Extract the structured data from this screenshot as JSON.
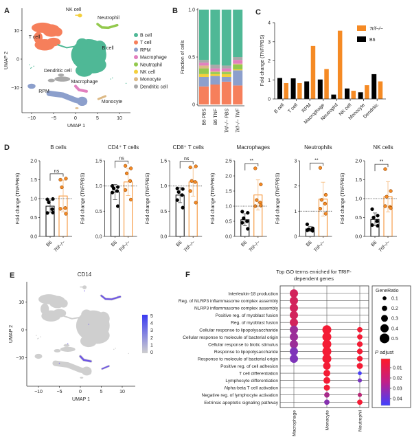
{
  "panel_labels": {
    "A": "A",
    "B": "B",
    "C": "C",
    "D": "D",
    "E": "E",
    "F": "F"
  },
  "umap_a": {
    "xlabel": "UMAP 1",
    "ylabel": "UMAP 2",
    "xticks": [
      "−10",
      "−5",
      "0",
      "5",
      "10"
    ],
    "yticks": [
      "10",
      "0",
      "−10"
    ],
    "cluster_labels": [
      "NK cell",
      "Neutrophil",
      "T cell",
      "B cell",
      "Dendritic cell",
      "Macrophage",
      "RPM",
      "Monocyte"
    ],
    "legend": [
      {
        "name": "B cell",
        "color": "#4fb896"
      },
      {
        "name": "T cell",
        "color": "#f67f5b"
      },
      {
        "name": "RPM",
        "color": "#8c9fcc"
      },
      {
        "name": "Macrophage",
        "color": "#e27fbf"
      },
      {
        "name": "Neutrophil",
        "color": "#93c94d"
      },
      {
        "name": "NK cell",
        "color": "#f4cf3b"
      },
      {
        "name": "Monocyte",
        "color": "#ddb985"
      },
      {
        "name": "Dendritic cell",
        "color": "#a9a9a9"
      }
    ]
  },
  "umap_e": {
    "title": "CD14",
    "xlabel": "UMAP 1",
    "ylabel": "UMAP 2",
    "xticks": [
      "−10",
      "−5",
      "0",
      "5",
      "10"
    ],
    "yticks": [
      "10",
      "0",
      "−10"
    ],
    "colorbar_ticks": [
      "5",
      "4",
      "3",
      "2",
      "1",
      "0"
    ],
    "colorbar_colors": {
      "high": "#3a3af2",
      "low": "#cfcfcf"
    },
    "base_color": "#cfcfcf",
    "high_expression_clusters": [
      "Neutrophil",
      "Macrophage",
      "Monocyte"
    ]
  },
  "chart_data": [
    {
      "panel": "B",
      "type": "bar",
      "stacked": true,
      "categories": [
        "B6 PBS",
        "B6 TNF",
        "Trif−/− PBS",
        "Trif−/− TNF"
      ],
      "ylabel": "Fraction of cells",
      "ylim": [
        0,
        1
      ],
      "yticks": [
        "0",
        "0.5",
        "1.0"
      ],
      "series": [
        {
          "name": "T cell",
          "values": [
            0.19,
            0.21,
            0.24,
            0.2
          ]
        },
        {
          "name": "RPM",
          "values": [
            0.1,
            0.09,
            0.05,
            0.16
          ]
        },
        {
          "name": "NK cell",
          "values": [
            0.03,
            0.02,
            0.03,
            0.01
          ]
        },
        {
          "name": "Neutrophil",
          "values": [
            0.06,
            0.02,
            0.02,
            0.05
          ]
        },
        {
          "name": "Monocyte",
          "values": [
            0.03,
            0.01,
            0.01,
            0.01
          ]
        },
        {
          "name": "Macrophage",
          "values": [
            0.03,
            0.03,
            0.03,
            0.04
          ]
        },
        {
          "name": "Dendritic cell",
          "values": [
            0.03,
            0.04,
            0.03,
            0.03
          ]
        },
        {
          "name": "B cell",
          "values": [
            0.53,
            0.58,
            0.59,
            0.5
          ]
        }
      ]
    },
    {
      "panel": "C",
      "type": "bar",
      "categories": [
        "B cell",
        "T cell",
        "RPM",
        "Macrophage",
        "Neutrophil",
        "NK cell",
        "Monocyte",
        "Dendritic"
      ],
      "ylabel": "Fold change (TNF/PBS)",
      "ylim": [
        0,
        4
      ],
      "yticks": [
        "0",
        "1",
        "2",
        "3",
        "4"
      ],
      "legend_position": "top-right",
      "series": [
        {
          "name": "B6",
          "color": "#000000",
          "values": [
            1.1,
            1.08,
            0.92,
            1.02,
            0.23,
            0.55,
            0.35,
            1.3
          ]
        },
        {
          "name": "Trif−/−",
          "color": "#f58a24",
          "values": [
            0.83,
            0.83,
            2.78,
            1.57,
            3.58,
            0.43,
            0.72,
            0.92
          ]
        }
      ],
      "legend": [
        "Trif−/−",
        "B6"
      ]
    },
    {
      "panel": "D",
      "type": "bar",
      "groups": [
        "B6",
        "Trif−/−"
      ],
      "ylabel": "Fold change (TNF/PBS)",
      "reference_line": 1.0,
      "colors": {
        "B6": "#000000",
        "Trif−/−": "#f58a24"
      },
      "subplots": [
        {
          "title": "B cells",
          "ylim": [
            0,
            2
          ],
          "yticks": [
            "0.0",
            "0.5",
            "1.0",
            "1.5",
            "2.0"
          ],
          "sig": "ns",
          "B6": {
            "mean": 0.8,
            "sd": 0.16,
            "points": [
              0.98,
              0.99,
              0.9,
              0.72,
              0.62,
              0.63
            ]
          },
          "Trif": {
            "mean": 1.07,
            "sd": 0.42,
            "points": [
              1.5,
              1.53,
              1.3,
              0.75,
              0.73,
              0.6
            ]
          }
        },
        {
          "title": "CD4⁺ T cells",
          "ylim": [
            0,
            1.5
          ],
          "yticks": [
            "0.0",
            "0.5",
            "1.0",
            "1.5"
          ],
          "sig": "ns",
          "B6": {
            "mean": 0.88,
            "sd": 0.15,
            "points": [
              1.0,
              0.98,
              0.95,
              0.9,
              0.87,
              0.6
            ]
          },
          "Trif": {
            "mean": 1.08,
            "sd": 0.27,
            "points": [
              1.4,
              1.35,
              1.25,
              1.1,
              0.92,
              0.73
            ]
          }
        },
        {
          "title": "CD8⁺ T cells",
          "ylim": [
            0,
            1.5
          ],
          "yticks": [
            "0.0",
            "0.5",
            "1.0",
            "1.5"
          ],
          "sig": "ns",
          "B6": {
            "mean": 0.82,
            "sd": 0.15,
            "points": [
              0.95,
              0.94,
              0.88,
              0.82,
              0.72,
              0.57
            ]
          },
          "Trif": {
            "mean": 1.08,
            "sd": 0.28,
            "points": [
              1.37,
              1.39,
              1.1,
              1.08,
              0.9,
              0.67
            ]
          }
        },
        {
          "title": "Macrophages",
          "ylim": [
            0,
            2.5
          ],
          "yticks": [
            "0.0",
            "0.5",
            "1.0",
            "1.5",
            "2.0",
            "2.5"
          ],
          "sig": "**",
          "B6": {
            "mean": 0.55,
            "sd": 0.2,
            "points": [
              0.82,
              0.78,
              0.6,
              0.5,
              0.45,
              0.25
            ]
          },
          "Trif": {
            "mean": 1.37,
            "sd": 0.5,
            "points": [
              2.25,
              1.72,
              1.2,
              1.12,
              1.0,
              1.02
            ]
          }
        },
        {
          "title": "Neutrophils",
          "ylim": [
            0,
            3
          ],
          "yticks": [
            "0",
            "1",
            "2",
            "3"
          ],
          "sig": "**",
          "B6": {
            "mean": 0.3,
            "sd": 0.1,
            "points": [
              0.48,
              0.32,
              0.28,
              0.25,
              0.24,
              0.22
            ]
          },
          "Trif": {
            "mean": 1.48,
            "sd": 0.67,
            "points": [
              2.72,
              1.65,
              1.45,
              1.3,
              1.1,
              0.9
            ]
          }
        },
        {
          "title": "NK cells",
          "ylim": [
            0,
            2
          ],
          "yticks": [
            "0.0",
            "0.5",
            "1.0",
            "1.5",
            "2.0"
          ],
          "sig": "**",
          "B6": {
            "mean": 0.45,
            "sd": 0.17,
            "points": [
              0.72,
              0.55,
              0.5,
              0.4,
              0.3,
              0.28
            ]
          },
          "Trif": {
            "mean": 1.05,
            "sd": 0.4,
            "points": [
              1.78,
              1.2,
              1.05,
              0.78,
              0.8,
              0.75
            ]
          }
        }
      ]
    },
    {
      "panel": "F",
      "type": "scatter",
      "subtype": "dotplot",
      "title": [
        "Top GO terms enriched for TRIF-",
        "dependent genes"
      ],
      "columns": [
        "Macrophage",
        "Monocyte",
        "Neutrophil"
      ],
      "terms": [
        "Interleukin-18 production",
        "Reg. of NLRP3 inflammasome complex assembly",
        "NLRP3 inflammasome complex assembly",
        "Positive reg. of myoblast fusion",
        "Reg. of myoblast fusion",
        "Cellular response to lipopolysaccharide",
        "Cellular response to molecule of bacterial origin",
        "Cellular response to biotic stimulus",
        "Response to lipopolysaccharide",
        "Response to molecule of bacterial origin",
        "Positive reg. of cell adhesion",
        "T cell differentiation",
        "Lymphocyte differentiation",
        "Alpha-beta T cell activation",
        "Negative reg. of lymphocyte activation",
        "Extrinsic apoptotic signaling pathway"
      ],
      "gene_ratio": {
        "Macrophage": [
          0.4,
          0.4,
          0.4,
          0.4,
          0.4,
          0.4,
          0.4,
          0.4,
          0.4,
          0.4,
          null,
          null,
          null,
          null,
          null,
          null
        ],
        "Monocyte": [
          null,
          null,
          null,
          null,
          null,
          0.45,
          0.45,
          0.45,
          0.45,
          0.45,
          0.35,
          0.3,
          0.3,
          0.25,
          0.2,
          0.2
        ],
        "Neutrophil": [
          null,
          null,
          null,
          null,
          null,
          0.2,
          0.2,
          0.22,
          0.22,
          0.22,
          0.25,
          0.1,
          0.12,
          null,
          0.12,
          0.2
        ]
      },
      "p_adjust": {
        "Macrophage": [
          0.012,
          0.012,
          0.012,
          0.012,
          0.012,
          0.025,
          0.025,
          0.025,
          0.032,
          0.032,
          null,
          null,
          null,
          null,
          null,
          null
        ],
        "Monocyte": [
          null,
          null,
          null,
          null,
          null,
          0.004,
          0.004,
          0.004,
          0.004,
          0.004,
          0.004,
          0.004,
          0.004,
          0.004,
          0.022,
          0.03
        ],
        "Neutrophil": [
          null,
          null,
          null,
          null,
          null,
          0.004,
          0.004,
          0.004,
          0.004,
          0.004,
          0.004,
          0.045,
          0.033,
          null,
          0.018,
          0.004
        ]
      },
      "size_legend": {
        "title": "GeneRatio",
        "values": [
          0.1,
          0.2,
          0.3,
          0.4,
          0.5
        ],
        "labels": [
          "0.1",
          "0.2",
          "0.3",
          "0.4",
          "0.5"
        ]
      },
      "color_legend": {
        "title_italic": "P",
        "title_rest": " adjust",
        "ticks": [
          "0.01",
          "0.02",
          "0.03",
          "0.04"
        ],
        "low_color": "#ff1a28",
        "high_color": "#4040ff"
      }
    }
  ]
}
